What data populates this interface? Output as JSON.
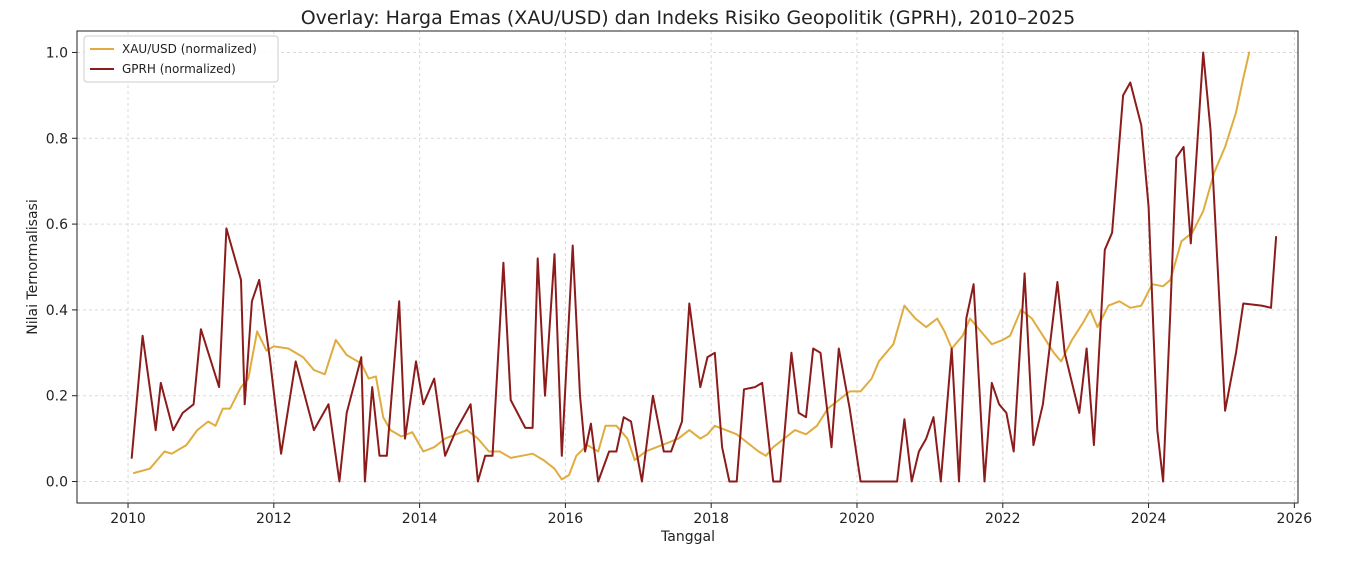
{
  "chart_data": {
    "type": "line",
    "title": "Overlay: Harga Emas (XAU/USD) dan Indeks Risiko Geopolitik (GPRH), 2010–2025",
    "xlabel": "Tanggal",
    "ylabel": "Nilai Ternormalisasi",
    "xlim": [
      2009.3,
      2026.05
    ],
    "ylim": [
      -0.05,
      1.05
    ],
    "x_ticks": [
      2010,
      2012,
      2014,
      2016,
      2018,
      2020,
      2022,
      2024,
      2026
    ],
    "y_ticks": [
      0.0,
      0.2,
      0.4,
      0.6,
      0.8,
      1.0
    ],
    "y_tick_labels": [
      "0.0",
      "0.2",
      "0.4",
      "0.6",
      "0.8",
      "1.0"
    ],
    "grid": true,
    "legend_position": "top-left",
    "series": [
      {
        "name": "XAU/USD (normalized)",
        "color": "#e0ac3f",
        "points": [
          [
            2010.08,
            0.02
          ],
          [
            2010.3,
            0.03
          ],
          [
            2010.5,
            0.07
          ],
          [
            2010.6,
            0.065
          ],
          [
            2010.8,
            0.085
          ],
          [
            2010.95,
            0.12
          ],
          [
            2011.1,
            0.14
          ],
          [
            2011.2,
            0.13
          ],
          [
            2011.3,
            0.17
          ],
          [
            2011.4,
            0.17
          ],
          [
            2011.55,
            0.22
          ],
          [
            2011.65,
            0.24
          ],
          [
            2011.77,
            0.35
          ],
          [
            2011.9,
            0.305
          ],
          [
            2012.0,
            0.315
          ],
          [
            2012.2,
            0.31
          ],
          [
            2012.4,
            0.29
          ],
          [
            2012.55,
            0.26
          ],
          [
            2012.7,
            0.25
          ],
          [
            2012.85,
            0.33
          ],
          [
            2013.0,
            0.295
          ],
          [
            2013.1,
            0.285
          ],
          [
            2013.2,
            0.275
          ],
          [
            2013.3,
            0.24
          ],
          [
            2013.4,
            0.245
          ],
          [
            2013.5,
            0.15
          ],
          [
            2013.6,
            0.12
          ],
          [
            2013.75,
            0.105
          ],
          [
            2013.9,
            0.115
          ],
          [
            2014.05,
            0.07
          ],
          [
            2014.2,
            0.08
          ],
          [
            2014.35,
            0.1
          ],
          [
            2014.5,
            0.11
          ],
          [
            2014.65,
            0.12
          ],
          [
            2014.8,
            0.1
          ],
          [
            2014.95,
            0.07
          ],
          [
            2015.1,
            0.07
          ],
          [
            2015.25,
            0.055
          ],
          [
            2015.4,
            0.06
          ],
          [
            2015.55,
            0.065
          ],
          [
            2015.7,
            0.05
          ],
          [
            2015.85,
            0.03
          ],
          [
            2015.95,
            0.005
          ],
          [
            2016.05,
            0.015
          ],
          [
            2016.15,
            0.06
          ],
          [
            2016.3,
            0.085
          ],
          [
            2016.45,
            0.07
          ],
          [
            2016.55,
            0.13
          ],
          [
            2016.7,
            0.13
          ],
          [
            2016.85,
            0.1
          ],
          [
            2016.95,
            0.05
          ],
          [
            2017.1,
            0.07
          ],
          [
            2017.25,
            0.08
          ],
          [
            2017.4,
            0.09
          ],
          [
            2017.55,
            0.1
          ],
          [
            2017.7,
            0.12
          ],
          [
            2017.85,
            0.1
          ],
          [
            2017.95,
            0.11
          ],
          [
            2018.05,
            0.13
          ],
          [
            2018.2,
            0.12
          ],
          [
            2018.35,
            0.11
          ],
          [
            2018.5,
            0.09
          ],
          [
            2018.65,
            0.07
          ],
          [
            2018.75,
            0.06
          ],
          [
            2018.85,
            0.08
          ],
          [
            2019.0,
            0.1
          ],
          [
            2019.15,
            0.12
          ],
          [
            2019.3,
            0.11
          ],
          [
            2019.45,
            0.13
          ],
          [
            2019.6,
            0.17
          ],
          [
            2019.75,
            0.19
          ],
          [
            2019.9,
            0.21
          ],
          [
            2020.05,
            0.21
          ],
          [
            2020.2,
            0.24
          ],
          [
            2020.3,
            0.28
          ],
          [
            2020.4,
            0.3
          ],
          [
            2020.5,
            0.32
          ],
          [
            2020.65,
            0.41
          ],
          [
            2020.8,
            0.38
          ],
          [
            2020.95,
            0.36
          ],
          [
            2021.1,
            0.38
          ],
          [
            2021.2,
            0.35
          ],
          [
            2021.3,
            0.31
          ],
          [
            2021.45,
            0.34
          ],
          [
            2021.55,
            0.38
          ],
          [
            2021.7,
            0.35
          ],
          [
            2021.85,
            0.32
          ],
          [
            2022.0,
            0.33
          ],
          [
            2022.1,
            0.34
          ],
          [
            2022.25,
            0.4
          ],
          [
            2022.4,
            0.38
          ],
          [
            2022.55,
            0.34
          ],
          [
            2022.7,
            0.3
          ],
          [
            2022.8,
            0.28
          ],
          [
            2022.95,
            0.33
          ],
          [
            2023.1,
            0.37
          ],
          [
            2023.2,
            0.4
          ],
          [
            2023.3,
            0.36
          ],
          [
            2023.45,
            0.41
          ],
          [
            2023.6,
            0.42
          ],
          [
            2023.75,
            0.405
          ],
          [
            2023.9,
            0.41
          ],
          [
            2024.05,
            0.46
          ],
          [
            2024.2,
            0.455
          ],
          [
            2024.3,
            0.47
          ],
          [
            2024.45,
            0.56
          ],
          [
            2024.6,
            0.58
          ],
          [
            2024.75,
            0.63
          ],
          [
            2024.9,
            0.72
          ],
          [
            2025.05,
            0.78
          ],
          [
            2025.2,
            0.86
          ],
          [
            2025.3,
            0.94
          ],
          [
            2025.38,
            1.0
          ]
        ]
      },
      {
        "name": "GPRH (normalized)",
        "color": "#8c1c1c",
        "points": [
          [
            2010.05,
            0.055
          ],
          [
            2010.2,
            0.34
          ],
          [
            2010.38,
            0.12
          ],
          [
            2010.45,
            0.23
          ],
          [
            2010.62,
            0.12
          ],
          [
            2010.75,
            0.16
          ],
          [
            2010.9,
            0.18
          ],
          [
            2011.0,
            0.355
          ],
          [
            2011.25,
            0.22
          ],
          [
            2011.35,
            0.59
          ],
          [
            2011.55,
            0.47
          ],
          [
            2011.6,
            0.18
          ],
          [
            2011.7,
            0.42
          ],
          [
            2011.8,
            0.47
          ],
          [
            2011.95,
            0.28
          ],
          [
            2012.1,
            0.065
          ],
          [
            2012.3,
            0.28
          ],
          [
            2012.55,
            0.12
          ],
          [
            2012.75,
            0.18
          ],
          [
            2012.9,
            0.0
          ],
          [
            2013.0,
            0.16
          ],
          [
            2013.2,
            0.29
          ],
          [
            2013.25,
            0.0
          ],
          [
            2013.35,
            0.22
          ],
          [
            2013.45,
            0.06
          ],
          [
            2013.55,
            0.06
          ],
          [
            2013.72,
            0.42
          ],
          [
            2013.8,
            0.1
          ],
          [
            2013.95,
            0.28
          ],
          [
            2014.05,
            0.18
          ],
          [
            2014.2,
            0.24
          ],
          [
            2014.35,
            0.06
          ],
          [
            2014.5,
            0.12
          ],
          [
            2014.7,
            0.18
          ],
          [
            2014.8,
            0.0
          ],
          [
            2014.9,
            0.06
          ],
          [
            2015.0,
            0.06
          ],
          [
            2015.15,
            0.51
          ],
          [
            2015.25,
            0.19
          ],
          [
            2015.45,
            0.125
          ],
          [
            2015.55,
            0.125
          ],
          [
            2015.62,
            0.52
          ],
          [
            2015.72,
            0.2
          ],
          [
            2015.85,
            0.53
          ],
          [
            2015.95,
            0.06
          ],
          [
            2016.1,
            0.55
          ],
          [
            2016.2,
            0.2
          ],
          [
            2016.27,
            0.07
          ],
          [
            2016.35,
            0.135
          ],
          [
            2016.45,
            0.0
          ],
          [
            2016.6,
            0.07
          ],
          [
            2016.7,
            0.07
          ],
          [
            2016.8,
            0.15
          ],
          [
            2016.9,
            0.14
          ],
          [
            2017.05,
            0.0
          ],
          [
            2017.2,
            0.2
          ],
          [
            2017.35,
            0.07
          ],
          [
            2017.45,
            0.07
          ],
          [
            2017.6,
            0.14
          ],
          [
            2017.7,
            0.415
          ],
          [
            2017.85,
            0.22
          ],
          [
            2017.95,
            0.29
          ],
          [
            2018.05,
            0.3
          ],
          [
            2018.15,
            0.08
          ],
          [
            2018.25,
            0.0
          ],
          [
            2018.35,
            0.0
          ],
          [
            2018.45,
            0.215
          ],
          [
            2018.6,
            0.22
          ],
          [
            2018.7,
            0.23
          ],
          [
            2018.85,
            0.0
          ],
          [
            2018.95,
            0.0
          ],
          [
            2019.1,
            0.3
          ],
          [
            2019.2,
            0.16
          ],
          [
            2019.3,
            0.15
          ],
          [
            2019.4,
            0.31
          ],
          [
            2019.5,
            0.3
          ],
          [
            2019.65,
            0.08
          ],
          [
            2019.75,
            0.31
          ],
          [
            2019.9,
            0.17
          ],
          [
            2020.05,
            0.0
          ],
          [
            2020.2,
            0.0
          ],
          [
            2020.4,
            0.0
          ],
          [
            2020.55,
            0.0
          ],
          [
            2020.65,
            0.145
          ],
          [
            2020.75,
            0.0
          ],
          [
            2020.85,
            0.07
          ],
          [
            2020.95,
            0.1
          ],
          [
            2021.05,
            0.15
          ],
          [
            2021.15,
            0.0
          ],
          [
            2021.3,
            0.31
          ],
          [
            2021.4,
            0.0
          ],
          [
            2021.5,
            0.38
          ],
          [
            2021.6,
            0.46
          ],
          [
            2021.75,
            0.0
          ],
          [
            2021.85,
            0.23
          ],
          [
            2021.95,
            0.18
          ],
          [
            2022.05,
            0.16
          ],
          [
            2022.15,
            0.07
          ],
          [
            2022.3,
            0.485
          ],
          [
            2022.42,
            0.085
          ],
          [
            2022.55,
            0.18
          ],
          [
            2022.75,
            0.465
          ],
          [
            2022.85,
            0.3
          ],
          [
            2023.05,
            0.16
          ],
          [
            2023.15,
            0.31
          ],
          [
            2023.25,
            0.085
          ],
          [
            2023.4,
            0.54
          ],
          [
            2023.5,
            0.58
          ],
          [
            2023.65,
            0.9
          ],
          [
            2023.75,
            0.93
          ],
          [
            2023.9,
            0.83
          ],
          [
            2024.0,
            0.64
          ],
          [
            2024.12,
            0.12
          ],
          [
            2024.2,
            0.0
          ],
          [
            2024.3,
            0.4
          ],
          [
            2024.38,
            0.755
          ],
          [
            2024.48,
            0.78
          ],
          [
            2024.58,
            0.555
          ],
          [
            2024.75,
            1.0
          ],
          [
            2024.85,
            0.82
          ],
          [
            2025.05,
            0.165
          ],
          [
            2025.2,
            0.3
          ],
          [
            2025.3,
            0.415
          ],
          [
            2025.55,
            0.41
          ],
          [
            2025.68,
            0.405
          ],
          [
            2025.75,
            0.57
          ]
        ]
      }
    ]
  }
}
